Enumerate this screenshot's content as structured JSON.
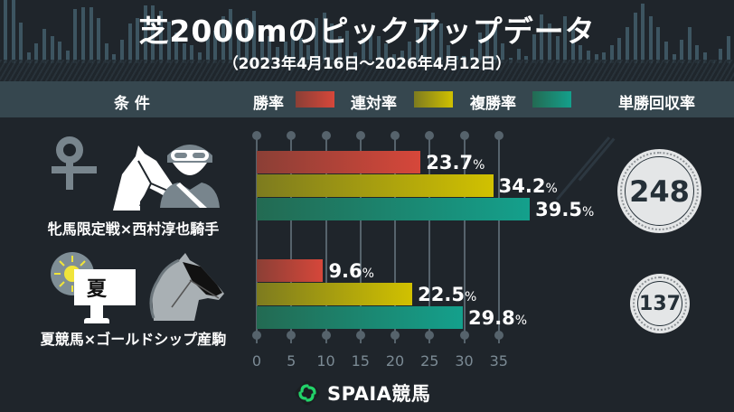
{
  "title": "芝2000mのピックアップデータ",
  "subtitle": "（2023年4月16日〜2026年4月12日）",
  "header": {
    "conditions_label": "条 件",
    "legend": [
      {
        "label": "勝率",
        "color": "#d6473a"
      },
      {
        "label": "連対率",
        "color": "#d1c100"
      },
      {
        "label": "複勝率",
        "color": "#14a08c"
      }
    ],
    "return_label": "単勝回収率"
  },
  "rows": [
    {
      "condition": "牝馬限定戦×西村淳也騎手",
      "icons": [
        "female-symbol-icon",
        "horse-head-icon",
        "jockey-icon"
      ],
      "win": "23.7",
      "place": "34.2",
      "show": "39.5",
      "return_rate": "248"
    },
    {
      "condition": "夏競馬×ゴールドシップ産駒",
      "icons": [
        "sun-icon",
        "summer-sign-icon",
        "horse-head-icon"
      ],
      "sign_text": "夏",
      "win": "9.6",
      "place": "22.5",
      "show": "29.8",
      "return_rate": "137"
    }
  ],
  "percent_unit": "%",
  "axis": {
    "ticks": [
      "0",
      "5",
      "10",
      "15",
      "20",
      "25",
      "30",
      "35"
    ]
  },
  "logo": {
    "text": "SPAIA競馬"
  },
  "chart_data": {
    "type": "bar",
    "orientation": "horizontal",
    "title": "芝2000mのピックアップデータ",
    "subtitle": "（2023年4月16日〜2026年4月12日）",
    "categories": [
      "牝馬限定戦×西村淳也騎手",
      "夏競馬×ゴールドシップ産駒"
    ],
    "series": [
      {
        "name": "勝率",
        "values": [
          23.7,
          9.6
        ],
        "color": "#d6473a"
      },
      {
        "name": "連対率",
        "values": [
          34.2,
          22.5
        ],
        "color": "#d1c100"
      },
      {
        "name": "複勝率",
        "values": [
          39.5,
          29.8
        ],
        "color": "#14a08c"
      }
    ],
    "extra": {
      "name": "単勝回収率",
      "values": [
        248,
        137
      ]
    },
    "xlabel": "",
    "ylabel": "",
    "xlim": [
      0,
      35
    ],
    "xticks": [
      0,
      5,
      10,
      15,
      20,
      25,
      30,
      35
    ],
    "grid": true,
    "legend_position": "top"
  }
}
